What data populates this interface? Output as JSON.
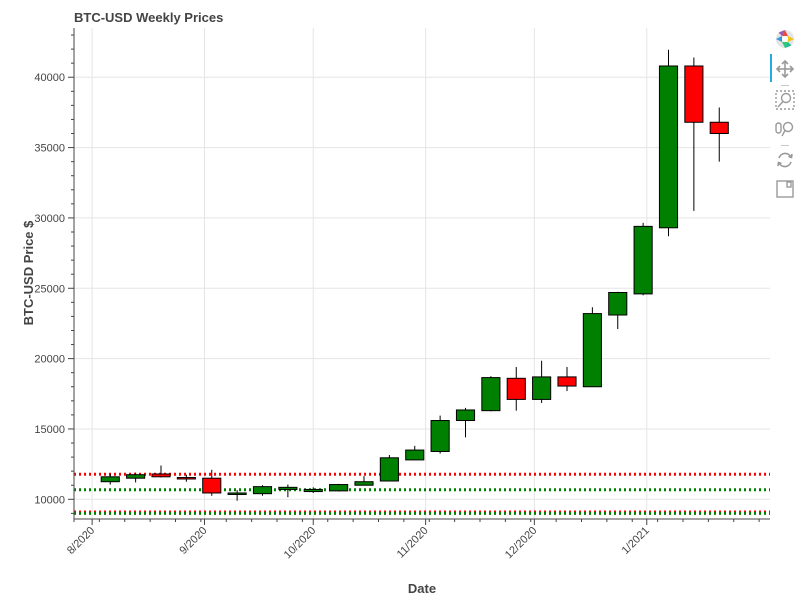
{
  "chart_data": {
    "type": "candlestick",
    "title": "BTC-USD Weekly Prices",
    "xlabel": "Date",
    "ylabel": "BTC-USD Price $",
    "x_ticks": [
      "8/2020",
      "9/2020",
      "10/2020",
      "11/2020",
      "12/2020",
      "1/2021"
    ],
    "x_tick_dates": [
      "2020-08-01",
      "2020-09-01",
      "2020-10-01",
      "2020-11-01",
      "2020-12-01",
      "2021-01-01"
    ],
    "y_ticks": [
      10000,
      15000,
      20000,
      25000,
      30000,
      35000,
      40000
    ],
    "xlim": [
      "2020-07-27",
      "2021-02-04"
    ],
    "ylim": [
      8600,
      43500
    ],
    "grid": true,
    "up_color": "#008000",
    "down_color": "#ff0000",
    "candles": [
      {
        "date": "2020-08-06",
        "open": 11250,
        "close": 11600,
        "high": 11800,
        "low": 11050
      },
      {
        "date": "2020-08-13",
        "open": 11500,
        "close": 11750,
        "high": 11900,
        "low": 11200
      },
      {
        "date": "2020-08-20",
        "open": 11800,
        "close": 11600,
        "high": 12400,
        "low": 11550
      },
      {
        "date": "2020-08-27",
        "open": 11550,
        "close": 11500,
        "high": 11750,
        "low": 11250
      },
      {
        "date": "2020-09-03",
        "open": 11500,
        "close": 10450,
        "high": 12100,
        "low": 10250
      },
      {
        "date": "2020-09-10",
        "open": 10400,
        "close": 10450,
        "high": 10650,
        "low": 9900
      },
      {
        "date": "2020-09-17",
        "open": 10400,
        "close": 10900,
        "high": 11000,
        "low": 10250
      },
      {
        "date": "2020-09-24",
        "open": 10700,
        "close": 10850,
        "high": 11050,
        "low": 10150
      },
      {
        "date": "2020-10-01",
        "open": 10550,
        "close": 10700,
        "high": 10850,
        "low": 10450
      },
      {
        "date": "2020-10-08",
        "open": 10600,
        "close": 11050,
        "high": 11100,
        "low": 10550
      },
      {
        "date": "2020-10-15",
        "open": 11000,
        "close": 11250,
        "high": 11650,
        "low": 11000
      },
      {
        "date": "2020-10-22",
        "open": 11300,
        "close": 12950,
        "high": 13150,
        "low": 11300
      },
      {
        "date": "2020-10-29",
        "open": 12800,
        "close": 13500,
        "high": 13800,
        "low": 12850
      },
      {
        "date": "2020-11-05",
        "open": 13400,
        "close": 15600,
        "high": 15950,
        "low": 13250
      },
      {
        "date": "2020-11-12",
        "open": 15600,
        "close": 16350,
        "high": 16500,
        "low": 14400
      },
      {
        "date": "2020-11-19",
        "open": 16300,
        "close": 18650,
        "high": 18750,
        "low": 16250
      },
      {
        "date": "2020-11-26",
        "open": 18600,
        "close": 17100,
        "high": 19400,
        "low": 16300
      },
      {
        "date": "2020-12-03",
        "open": 17100,
        "close": 18700,
        "high": 19850,
        "low": 16850
      },
      {
        "date": "2020-12-10",
        "open": 18700,
        "close": 18050,
        "high": 19400,
        "low": 17700
      },
      {
        "date": "2020-12-17",
        "open": 18000,
        "close": 23200,
        "high": 23650,
        "low": 18000
      },
      {
        "date": "2020-12-24",
        "open": 23100,
        "close": 24700,
        "high": 24750,
        "low": 22100
      },
      {
        "date": "2020-12-31",
        "open": 24600,
        "close": 29400,
        "high": 29650,
        "low": 24500
      },
      {
        "date": "2021-01-07",
        "open": 29300,
        "close": 40800,
        "high": 41950,
        "low": 28700
      },
      {
        "date": "2021-01-14",
        "open": 40800,
        "close": 36800,
        "high": 41400,
        "low": 30500
      },
      {
        "date": "2021-01-21",
        "open": 36800,
        "close": 36000,
        "high": 37850,
        "low": 34000
      }
    ],
    "horizontal_lines": [
      {
        "y": 11780,
        "color": "#ff0000",
        "style": "dotted"
      },
      {
        "y": 10680,
        "color": "#008000",
        "style": "dotted"
      },
      {
        "y": 9100,
        "color": "#ff0000",
        "style": "dotted"
      },
      {
        "y": 9000,
        "color": "#008000",
        "style": "dotted"
      }
    ]
  },
  "toolbar": {
    "logo_icon": "bokeh-logo-icon",
    "tools": [
      "pan-icon",
      "box-zoom-icon",
      "wheel-zoom-icon",
      "reset-icon",
      "save-icon"
    ]
  }
}
